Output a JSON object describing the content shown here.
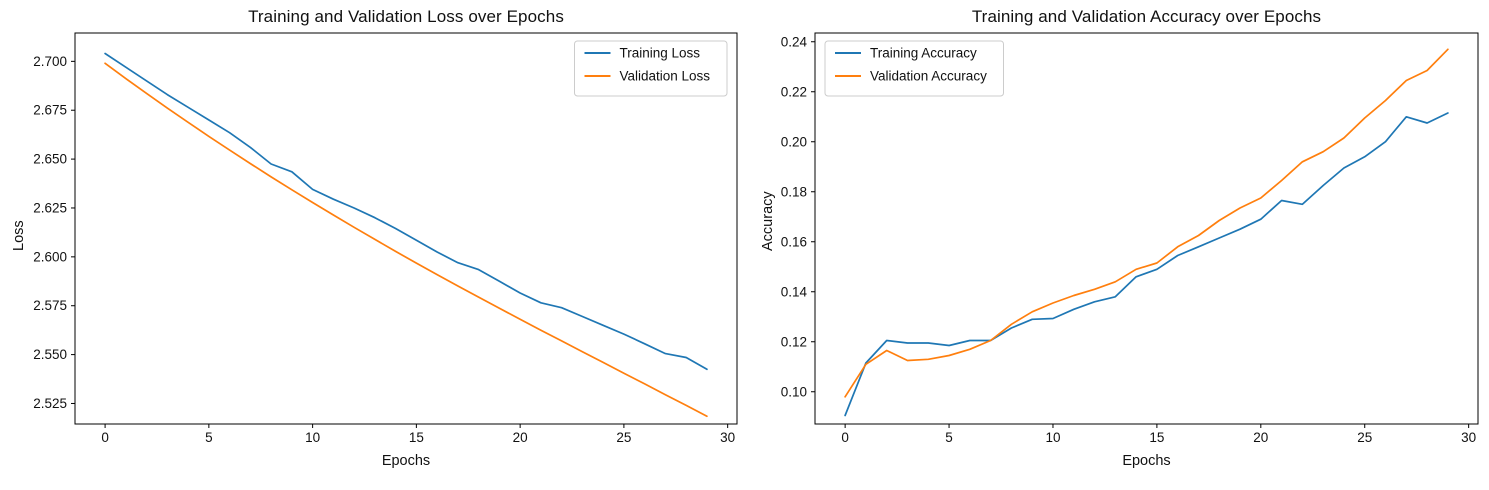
{
  "figure": {
    "background": "#ffffff",
    "text_color": "#111111",
    "spine_color": "#000000",
    "legend_border_color": "#cccccc",
    "legend_background": "#ffffff"
  },
  "chart_data": [
    {
      "type": "line",
      "title": "Training and Validation Loss over Epochs",
      "xlabel": "Epochs",
      "ylabel": "Loss",
      "grid": false,
      "legend_position": "upper right",
      "xlim": [
        -1.45,
        30.45
      ],
      "ylim": [
        2.5145,
        2.7145
      ],
      "xticks": [
        0,
        5,
        10,
        15,
        20,
        25,
        30
      ],
      "xtick_labels": [
        "0",
        "5",
        "10",
        "15",
        "20",
        "25",
        "30"
      ],
      "yticks": [
        2.525,
        2.55,
        2.575,
        2.6,
        2.625,
        2.65,
        2.675,
        2.7
      ],
      "ytick_labels": [
        "2.525",
        "2.550",
        "2.575",
        "2.600",
        "2.625",
        "2.650",
        "2.675",
        "2.700"
      ],
      "x": [
        0,
        1,
        2,
        3,
        4,
        5,
        6,
        7,
        8,
        9,
        10,
        11,
        12,
        13,
        14,
        15,
        16,
        17,
        18,
        19,
        20,
        21,
        22,
        23,
        24,
        25,
        26,
        27,
        28,
        29
      ],
      "series": [
        {
          "name": "Training Loss",
          "color": "#1f77b4",
          "values": [
            2.704,
            2.697,
            2.69,
            2.683,
            2.6765,
            2.67,
            2.6635,
            2.656,
            2.6475,
            2.6435,
            2.6345,
            2.6295,
            2.625,
            2.62,
            2.6145,
            2.6085,
            2.6025,
            2.597,
            2.5935,
            2.5875,
            2.5815,
            2.5765,
            2.574,
            2.5695,
            2.565,
            2.5605,
            2.5555,
            2.5505,
            2.5485,
            2.5425
          ]
        },
        {
          "name": "Validation Loss",
          "color": "#ff7f0e",
          "values": [
            2.699,
            2.6912,
            2.6836,
            2.6761,
            2.6688,
            2.6616,
            2.6546,
            2.6477,
            2.6409,
            2.6343,
            2.6278,
            2.6214,
            2.6151,
            2.6089,
            2.6028,
            2.5968,
            2.5909,
            2.5851,
            2.5794,
            2.5737,
            2.5681,
            2.5625,
            2.557,
            2.5515,
            2.546,
            2.5405,
            2.535,
            2.5295,
            2.524,
            2.5185
          ]
        }
      ]
    },
    {
      "type": "line",
      "title": "Training and Validation Accuracy over Epochs",
      "xlabel": "Epochs",
      "ylabel": "Accuracy",
      "grid": false,
      "legend_position": "upper left",
      "xlim": [
        -1.45,
        30.45
      ],
      "ylim": [
        0.0871,
        0.2435
      ],
      "xticks": [
        0,
        5,
        10,
        15,
        20,
        25,
        30
      ],
      "xtick_labels": [
        "0",
        "5",
        "10",
        "15",
        "20",
        "25",
        "30"
      ],
      "yticks": [
        0.1,
        0.12,
        0.14,
        0.16,
        0.18,
        0.2,
        0.22,
        0.24
      ],
      "ytick_labels": [
        "0.10",
        "0.12",
        "0.14",
        "0.16",
        "0.18",
        "0.20",
        "0.22",
        "0.24"
      ],
      "x": [
        0,
        1,
        2,
        3,
        4,
        5,
        6,
        7,
        8,
        9,
        10,
        11,
        12,
        13,
        14,
        15,
        16,
        17,
        18,
        19,
        20,
        21,
        22,
        23,
        24,
        25,
        26,
        27,
        28,
        29
      ],
      "series": [
        {
          "name": "Training Accuracy",
          "color": "#1f77b4",
          "values": [
            0.0905,
            0.1115,
            0.1205,
            0.1195,
            0.1195,
            0.1185,
            0.1205,
            0.1205,
            0.1255,
            0.129,
            0.1293,
            0.133,
            0.136,
            0.138,
            0.146,
            0.149,
            0.1545,
            0.158,
            0.1615,
            0.165,
            0.169,
            0.1765,
            0.175,
            0.1825,
            0.1895,
            0.194,
            0.2,
            0.21,
            0.2075,
            0.2115
          ]
        },
        {
          "name": "Validation Accuracy",
          "color": "#ff7f0e",
          "values": [
            0.098,
            0.111,
            0.1165,
            0.1125,
            0.113,
            0.1145,
            0.117,
            0.1205,
            0.127,
            0.132,
            0.1355,
            0.1385,
            0.141,
            0.144,
            0.149,
            0.1515,
            0.158,
            0.1625,
            0.1685,
            0.1735,
            0.1775,
            0.1845,
            0.192,
            0.196,
            0.2015,
            0.2095,
            0.2165,
            0.2245,
            0.2285,
            0.237
          ]
        }
      ]
    }
  ]
}
